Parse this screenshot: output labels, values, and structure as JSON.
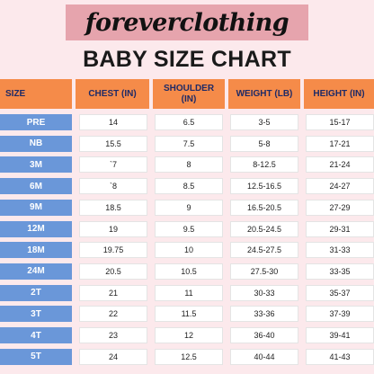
{
  "brand": {
    "name": "foreverclothing"
  },
  "title": "BABY SIZE CHART",
  "headers": {
    "size": "SIZE",
    "chest": "CHEST (IN)",
    "shoulder": "SHOULDER (IN)",
    "weight": "WEIGHT (LB)",
    "height": "HEIGHT (IN)"
  },
  "rows": [
    {
      "size": "PRE",
      "chest": "14",
      "shoulder": "6.5",
      "weight": "3-5",
      "height": "15-17"
    },
    {
      "size": "NB",
      "chest": "15.5",
      "shoulder": "7.5",
      "weight": "5-8",
      "height": "17-21"
    },
    {
      "size": "3M",
      "chest": "`7",
      "shoulder": "8",
      "weight": "8-12.5",
      "height": "21-24"
    },
    {
      "size": "6M",
      "chest": "`8",
      "shoulder": "8.5",
      "weight": "12.5-16.5",
      "height": "24-27"
    },
    {
      "size": "9M",
      "chest": "18.5",
      "shoulder": "9",
      "weight": "16.5-20.5",
      "height": "27-29"
    },
    {
      "size": "12M",
      "chest": "19",
      "shoulder": "9.5",
      "weight": "20.5-24.5",
      "height": "29-31"
    },
    {
      "size": "18M",
      "chest": "19.75",
      "shoulder": "10",
      "weight": "24.5-27.5",
      "height": "31-33"
    },
    {
      "size": "24M",
      "chest": "20.5",
      "shoulder": "10.5",
      "weight": "27.5-30",
      "height": "33-35"
    },
    {
      "size": "2T",
      "chest": "21",
      "shoulder": "11",
      "weight": "30-33",
      "height": "35-37"
    },
    {
      "size": "3T",
      "chest": "22",
      "shoulder": "11.5",
      "weight": "33-36",
      "height": "37-39"
    },
    {
      "size": "4T",
      "chest": "23",
      "shoulder": "12",
      "weight": "36-40",
      "height": "39-41"
    },
    {
      "size": "5T",
      "chest": "24",
      "shoulder": "12.5",
      "weight": "40-44",
      "height": "41-43"
    }
  ],
  "colors": {
    "background": "#fce9ec",
    "banner": "#e6a4ad",
    "header": "#f58b49",
    "header_text": "#1e2a66",
    "size_cell": "#6a97d9",
    "value_cell": "#ffffff"
  }
}
